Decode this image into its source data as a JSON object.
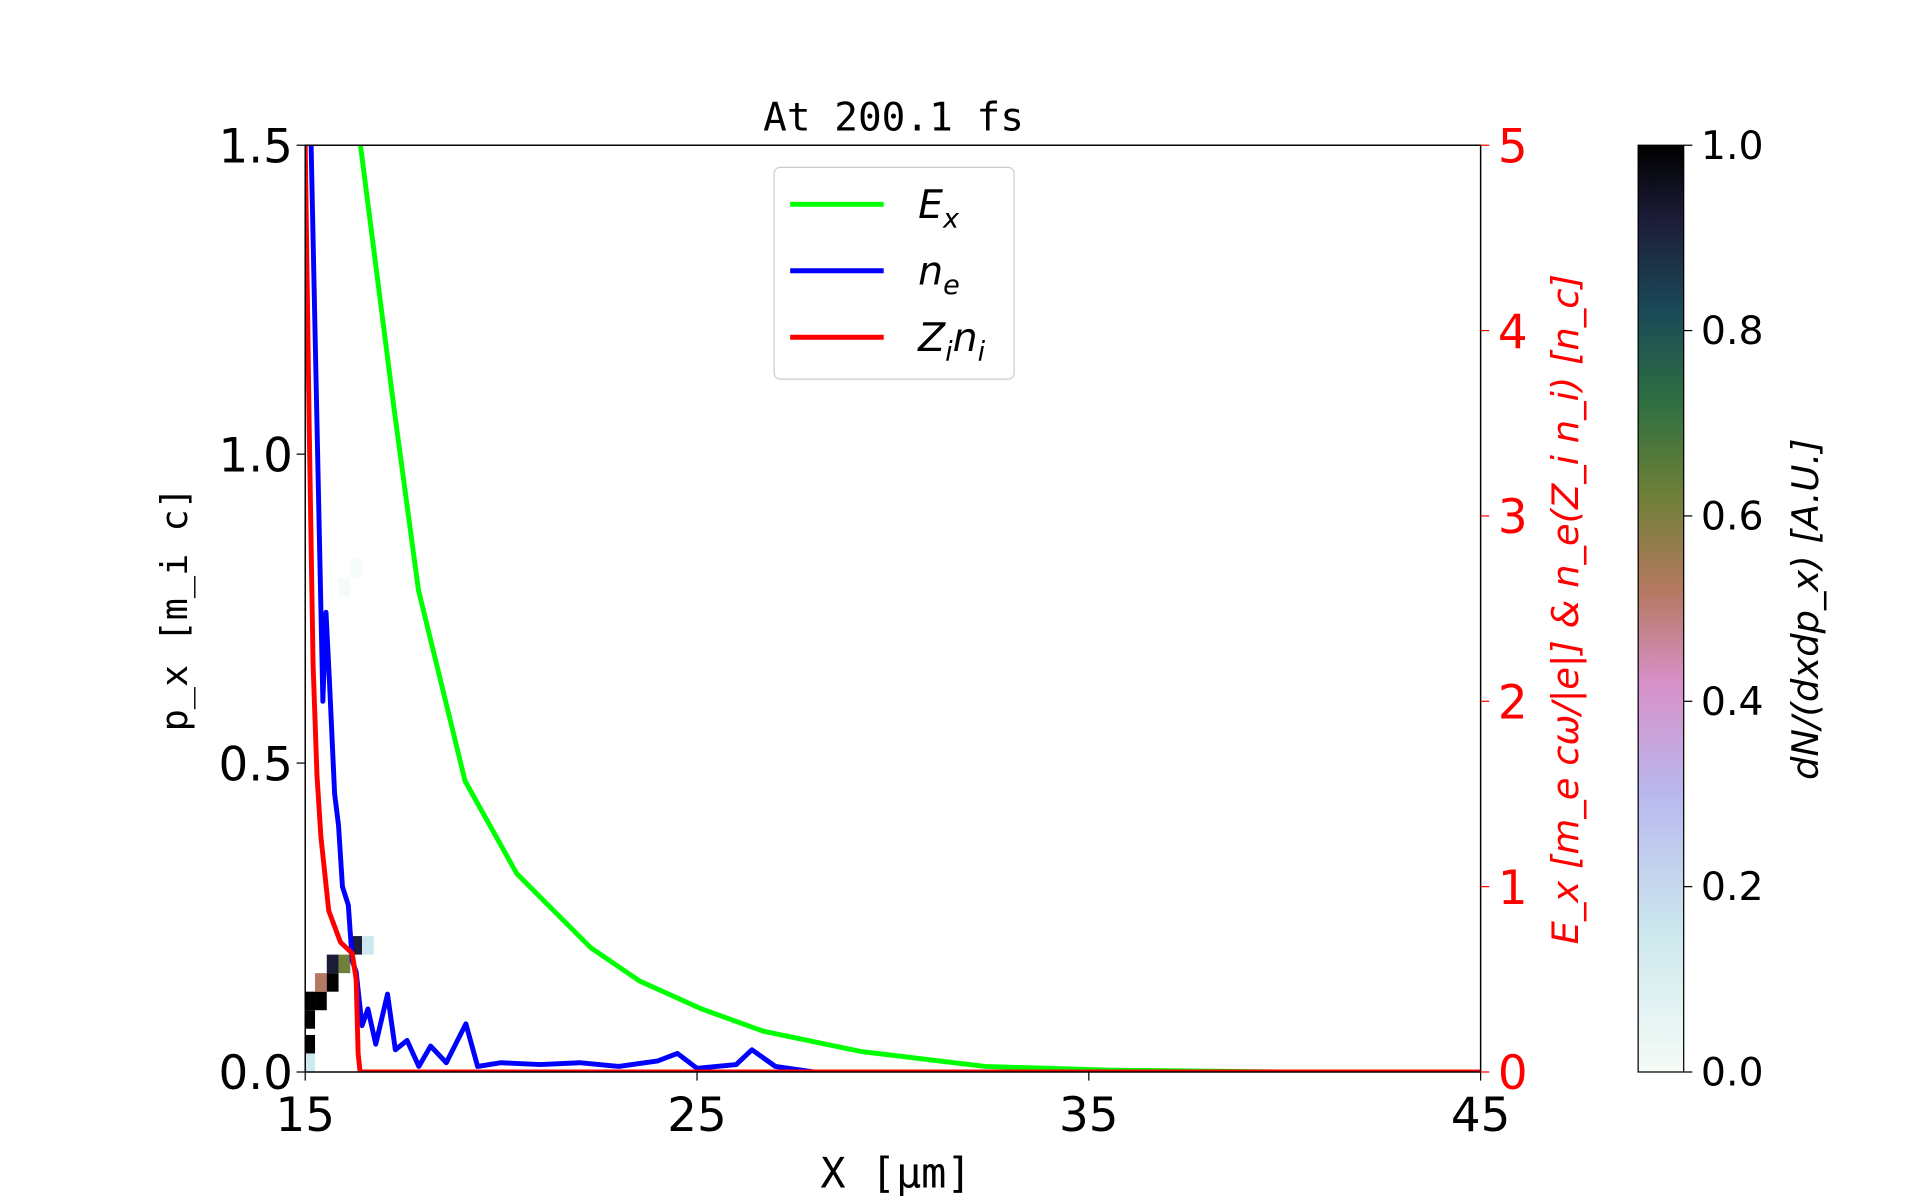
{
  "chart_data": {
    "type": "line",
    "title": "At 200.1 fs",
    "xlabel": "X  [μm]",
    "ylabel_left": "p_x  [m_i c]",
    "ylabel_right": "E_x  [m_e cω/|e|]  &  n_e(Z_i n_i)  [n_c]",
    "colorbar_label": "dN/(dxdp_x)  [A.U.]",
    "xlim": [
      15,
      45
    ],
    "ylim_left": [
      0,
      1.5
    ],
    "ylim_right": [
      0,
      5
    ],
    "colorbar_lim": [
      0,
      1
    ],
    "xticks": [
      "15",
      "25",
      "35",
      "45"
    ],
    "yticks_left": [
      "0.0",
      "0.5",
      "1.0",
      "1.5"
    ],
    "yticks_right": [
      "0",
      "1",
      "2",
      "3",
      "4",
      "5"
    ],
    "colorbar_ticks": [
      "0.0",
      "0.2",
      "0.4",
      "0.6",
      "0.8",
      "1.0"
    ],
    "grid": false,
    "legend_placement": "upper-center",
    "series": [
      {
        "name": "E_x",
        "label": "E",
        "sub": "x",
        "color": "#00ff00",
        "axis": "right",
        "x": [
          16.41,
          17.26,
          17.89,
          19.08,
          20.4,
          22.29,
          23.54,
          25.12,
          26.69,
          29.2,
          32.35,
          35.48,
          40,
          45
        ],
        "y": [
          5,
          3.59,
          2.6,
          1.57,
          1.07,
          0.67,
          0.49,
          0.34,
          0.22,
          0.11,
          0.03,
          0.01,
          0.0,
          0.0
        ]
      },
      {
        "name": "n_e",
        "label": "n",
        "sub": "e",
        "color": "#0000ff",
        "axis": "right",
        "x": [
          15.15,
          15.3,
          15.45,
          15.53,
          15.62,
          15.75,
          15.85,
          15.95,
          16.1,
          16.2,
          16.3,
          16.45,
          16.6,
          16.8,
          17.1,
          17.3,
          17.6,
          17.9,
          18.2,
          18.6,
          19.1,
          19.4,
          20,
          21,
          22,
          23,
          24,
          24.5,
          25,
          26,
          26.4,
          27,
          28,
          45
        ],
        "y": [
          5,
          3.5,
          2.0,
          2.48,
          2.1,
          1.5,
          1.33,
          1.0,
          0.9,
          0.6,
          0.54,
          0.25,
          0.34,
          0.15,
          0.42,
          0.12,
          0.17,
          0.03,
          0.14,
          0.05,
          0.26,
          0.03,
          0.05,
          0.04,
          0.05,
          0.03,
          0.06,
          0.1,
          0.02,
          0.04,
          0.12,
          0.03,
          0.0,
          0.0
        ]
      },
      {
        "name": "Z_i n_i",
        "label": "Z",
        "sub": "i",
        "label2": "n",
        "sub2": "i",
        "color": "#ff0000",
        "axis": "right",
        "x": [
          15.0,
          15.1,
          15.2,
          15.3,
          15.4,
          15.6,
          15.9,
          16.2,
          16.3,
          16.35,
          16.4,
          45
        ],
        "y": [
          5,
          3.5,
          2.2,
          1.6,
          1.27,
          0.87,
          0.7,
          0.64,
          0.5,
          0.1,
          0.0,
          0.0
        ]
      }
    ],
    "heatmap_cells": [
      {
        "x": 15.1,
        "p": 0.03,
        "v": 1.0
      },
      {
        "x": 15.1,
        "p": 0.07,
        "v": 1.0
      },
      {
        "x": 15.1,
        "p": 0.1,
        "v": 1.0
      },
      {
        "x": 15.4,
        "p": 0.1,
        "v": 0.95
      },
      {
        "x": 15.4,
        "p": 0.13,
        "v": 0.45
      },
      {
        "x": 15.7,
        "p": 0.13,
        "v": 0.95
      },
      {
        "x": 15.7,
        "p": 0.16,
        "v": 0.9
      },
      {
        "x": 16.0,
        "p": 0.16,
        "v": 0.5
      },
      {
        "x": 16.3,
        "p": 0.19,
        "v": 0.9
      },
      {
        "x": 16.6,
        "p": 0.19,
        "v": 0.1
      },
      {
        "x": 15.1,
        "p": 0.0,
        "v": 0.08
      },
      {
        "x": 16.0,
        "p": 0.77,
        "v": 0.05
      },
      {
        "x": 16.3,
        "p": 0.8,
        "v": 0.04
      }
    ]
  }
}
